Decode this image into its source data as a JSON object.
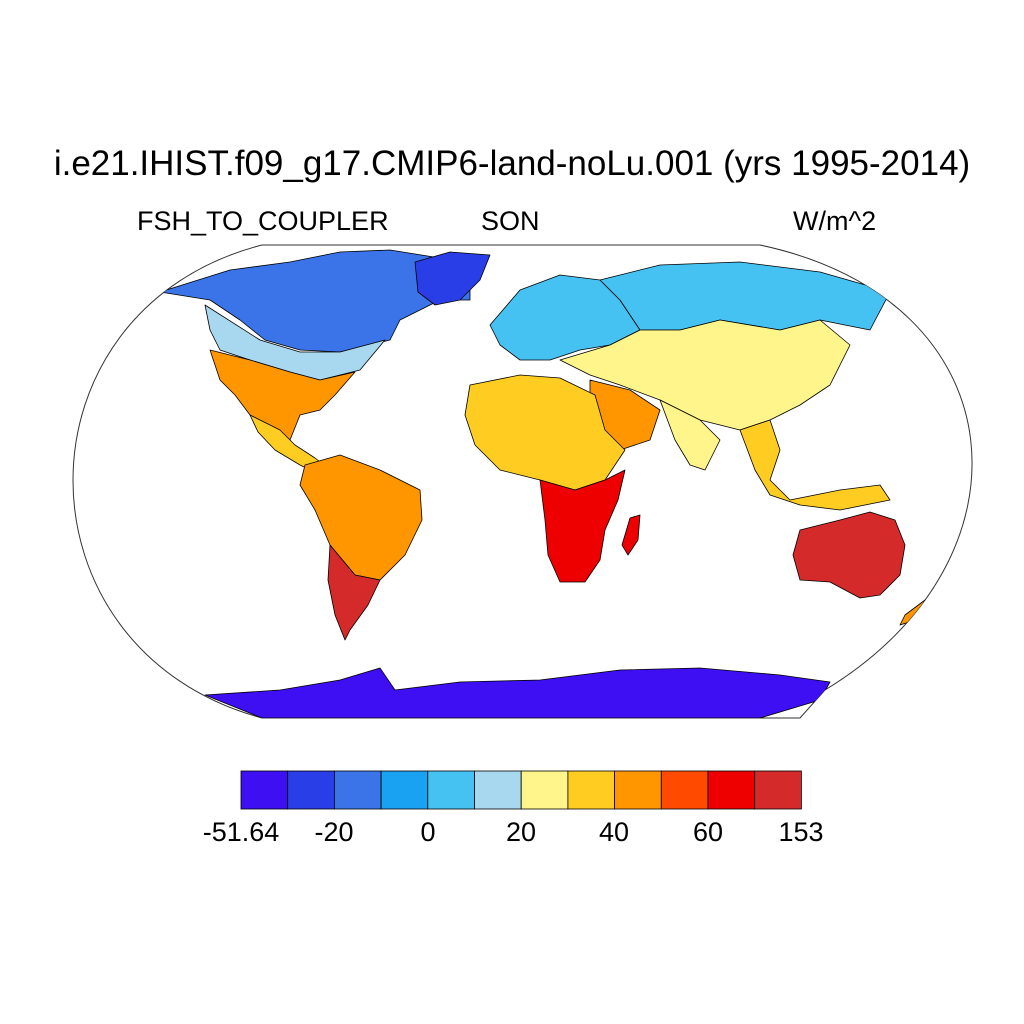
{
  "title": "i.e21.IHIST.f09_g17.CMIP6-land-noLu.001 (yrs 1995-2014)",
  "variable": "FSH_TO_COUPLER",
  "season": "SON",
  "units": "W/m^2",
  "colorbar": {
    "colors": [
      "#3d0ff2",
      "#2a3ee8",
      "#3a74e8",
      "#1aa2f2",
      "#46c2f2",
      "#a8d8ef",
      "#fff58a",
      "#ffcc22",
      "#ff9600",
      "#ff4a00",
      "#ee0000",
      "#d42a2a"
    ],
    "labels": [
      "-51.64",
      "-20",
      "0",
      "20",
      "40",
      "60",
      "153"
    ]
  },
  "regions": [
    {
      "name": "greenland",
      "color": "#2a3ee8"
    },
    {
      "name": "north-america-north",
      "color": "#3a74e8"
    },
    {
      "name": "north-america-central",
      "color": "#a8d8ef"
    },
    {
      "name": "north-america-south",
      "color": "#ff9600"
    },
    {
      "name": "central-america",
      "color": "#ffcc22"
    },
    {
      "name": "south-america",
      "color": "#ff9600"
    },
    {
      "name": "south-america-south",
      "color": "#d42a2a"
    },
    {
      "name": "europe",
      "color": "#46c2f2"
    },
    {
      "name": "asia-north",
      "color": "#46c2f2"
    },
    {
      "name": "asia-central",
      "color": "#fff58a"
    },
    {
      "name": "africa-north",
      "color": "#ffcc22"
    },
    {
      "name": "africa-south",
      "color": "#ee0000"
    },
    {
      "name": "arabia",
      "color": "#ff9600"
    },
    {
      "name": "india",
      "color": "#fff58a"
    },
    {
      "name": "southeast-asia",
      "color": "#ffcc22"
    },
    {
      "name": "australia",
      "color": "#d42a2a"
    },
    {
      "name": "new-zealand",
      "color": "#ff9600"
    },
    {
      "name": "madagascar",
      "color": "#ee0000"
    },
    {
      "name": "antarctica",
      "color": "#3d0ff2"
    }
  ]
}
